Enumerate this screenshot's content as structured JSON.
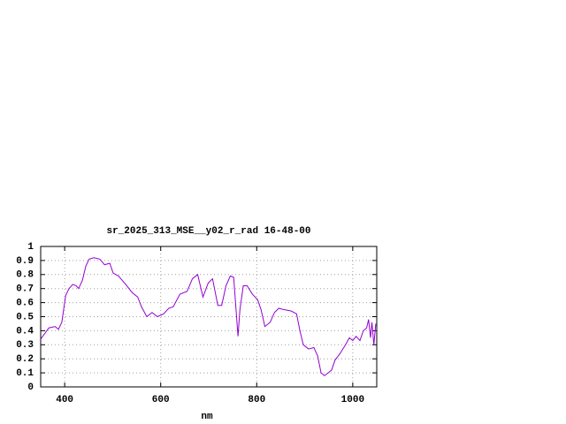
{
  "chart_data": {
    "type": "line",
    "title": "sr_2025_313_MSE__y02_r_rad 16-48-00",
    "x_label": "nm",
    "x": [
      350,
      367,
      380,
      387,
      394,
      402,
      409,
      417,
      424,
      429,
      437,
      444,
      451,
      461,
      473,
      483,
      494,
      501,
      512,
      527,
      541,
      552,
      560,
      571,
      582,
      593,
      606,
      617,
      626,
      640,
      655,
      666,
      677,
      688,
      699,
      708,
      719,
      727,
      736,
      745,
      752,
      758,
      761,
      765,
      772,
      780,
      791,
      802,
      809,
      817,
      828,
      837,
      846,
      857,
      872,
      883,
      890,
      897,
      908,
      919,
      927,
      934,
      941,
      949,
      956,
      963,
      974,
      985,
      993,
      1000,
      1007,
      1015,
      1022,
      1029,
      1033,
      1037,
      1040,
      1044,
      1048
    ],
    "series": [
      {
        "name": "r_rad",
        "color": "#9400d3",
        "values": [
          0.34,
          0.42,
          0.43,
          0.41,
          0.46,
          0.65,
          0.7,
          0.73,
          0.72,
          0.7,
          0.76,
          0.86,
          0.91,
          0.92,
          0.91,
          0.87,
          0.88,
          0.81,
          0.79,
          0.73,
          0.67,
          0.64,
          0.57,
          0.5,
          0.53,
          0.5,
          0.52,
          0.56,
          0.57,
          0.66,
          0.68,
          0.77,
          0.8,
          0.64,
          0.74,
          0.77,
          0.58,
          0.58,
          0.72,
          0.79,
          0.78,
          0.5,
          0.36,
          0.55,
          0.72,
          0.72,
          0.66,
          0.62,
          0.55,
          0.43,
          0.46,
          0.53,
          0.56,
          0.55,
          0.54,
          0.52,
          0.4,
          0.3,
          0.27,
          0.28,
          0.22,
          0.1,
          0.08,
          0.1,
          0.12,
          0.19,
          0.24,
          0.3,
          0.35,
          0.33,
          0.36,
          0.33,
          0.4,
          0.42,
          0.48,
          0.35,
          0.46,
          0.3,
          0.45
        ]
      }
    ],
    "xlim": [
      350,
      1050
    ],
    "xticks": [
      400,
      600,
      800,
      1000
    ],
    "ylim": [
      0,
      1
    ],
    "yticks": [
      0,
      0.1,
      0.2,
      0.3,
      0.4,
      0.5,
      0.6,
      0.7,
      0.8,
      0.9,
      1
    ],
    "grid": true
  }
}
